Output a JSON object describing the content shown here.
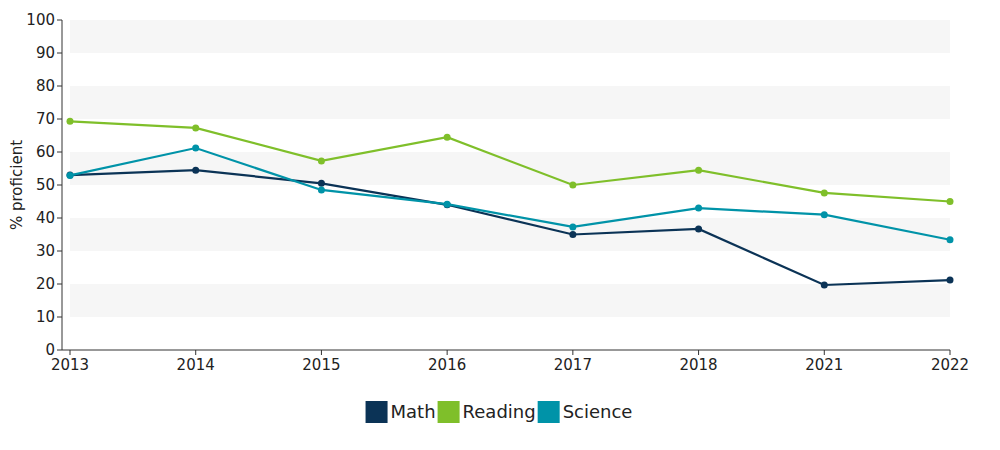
{
  "chart_data": {
    "type": "line",
    "y_label": "% proficient",
    "categories": [
      "2013",
      "2014",
      "2015",
      "2016",
      "2017",
      "2018",
      "2021",
      "2022"
    ],
    "series": [
      {
        "name": "Math",
        "color": "#0b3356",
        "marker": "circle",
        "values": [
          53,
          54.5,
          50.5,
          44,
          35,
          36.7,
          19.7,
          21.2
        ]
      },
      {
        "name": "Reading",
        "color": "#7fbf2a",
        "marker": "circle",
        "values": [
          69.3,
          67.3,
          57.3,
          64.5,
          50,
          54.5,
          47.6,
          45
        ]
      },
      {
        "name": "Science",
        "color": "#0093a8",
        "marker": "circle",
        "values": [
          52.9,
          61.2,
          48.5,
          44.2,
          37.3,
          43,
          41,
          33.4
        ]
      }
    ],
    "ylim": [
      0,
      100
    ],
    "yticks": [
      0,
      10,
      20,
      30,
      40,
      50,
      60,
      70,
      80,
      90,
      100
    ],
    "grid": true,
    "legend": "bottom"
  }
}
